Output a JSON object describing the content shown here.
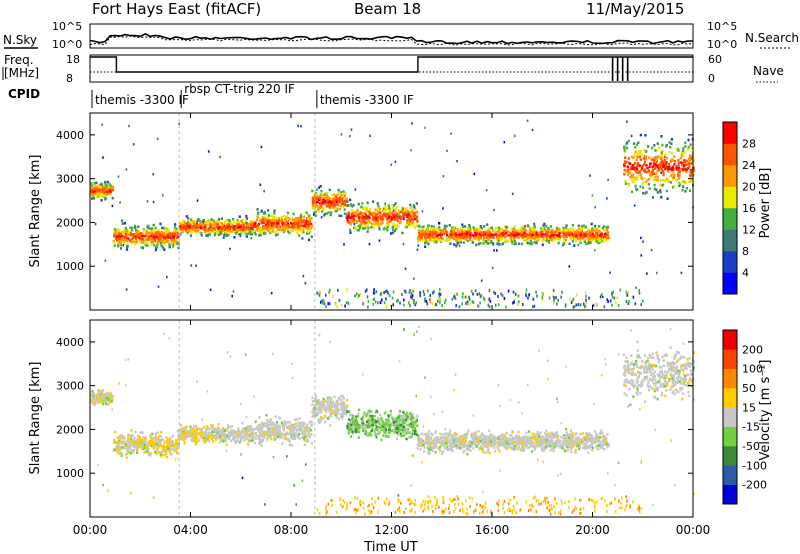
{
  "header": {
    "station": "Fort Hays East (fitACF)",
    "beam": "Beam 18",
    "date": "11/May/2015"
  },
  "top_strips": {
    "nsky_label": "N.Sky",
    "nsearch_label": "N.Search",
    "noise_ticks_left": [
      "10^5",
      "10^0"
    ],
    "noise_ticks_right": [
      "10^5",
      "10^0"
    ],
    "freq_label": "Freq.",
    "freq_unit": "[MHz]",
    "freq_ticks": [
      "18",
      "8"
    ],
    "nave_label": "Nave",
    "nave_ticks": [
      "60",
      "0"
    ],
    "cpid_label": "CPID",
    "cpid_segments": [
      {
        "label": "themis -3300 IF",
        "start_h": 0.0,
        "end_h": 3.55
      },
      {
        "label": "rbsp CT-trig 220 IF",
        "start_h": 3.55,
        "end_h": 8.95
      },
      {
        "label": "themis -3300 IF",
        "start_h": 8.95,
        "end_h": 24.0
      }
    ]
  },
  "chart_data": [
    {
      "type": "heatmap",
      "title": "Power",
      "ylabel": "Slant Range [km]",
      "ylim": [
        0,
        4500
      ],
      "y_ticks": [
        "4000",
        "3000",
        "2000",
        "1000"
      ],
      "xlim": [
        0,
        24
      ],
      "colorbar_label": "Power [dB]",
      "colorbar_ticks": [
        "28",
        "24",
        "20",
        "16",
        "12",
        "8",
        "4"
      ],
      "colorbar_colors": [
        "#0000ff",
        "#1a3fc6",
        "#3c7a78",
        "#40b040",
        "#e8e800",
        "#ff9900",
        "#ff5500",
        "#ff0000"
      ],
      "scatter_bands": [
        {
          "t0": 0.0,
          "t1": 0.9,
          "r0": 2500,
          "r1": 3000
        },
        {
          "t0": 0.9,
          "t1": 3.5,
          "r0": 1350,
          "r1": 2050
        },
        {
          "t0": 3.5,
          "t1": 6.5,
          "r0": 1650,
          "r1": 2200
        },
        {
          "t0": 6.5,
          "t1": 8.8,
          "r0": 1600,
          "r1": 2400
        },
        {
          "t0": 8.8,
          "t1": 10.2,
          "r0": 2100,
          "r1": 2900
        },
        {
          "t0": 10.2,
          "t1": 13.0,
          "r0": 1700,
          "r1": 2600
        },
        {
          "t0": 13.0,
          "t1": 20.6,
          "r0": 1450,
          "r1": 2050
        },
        {
          "t0": 21.2,
          "t1": 24.0,
          "r0": 2500,
          "r1": 4100
        }
      ]
    },
    {
      "type": "heatmap",
      "title": "Velocity",
      "ylabel": "Slant Range [km]",
      "ylim": [
        0,
        4500
      ],
      "y_ticks": [
        "4000",
        "3000",
        "2000",
        "1000"
      ],
      "xlim": [
        0,
        24
      ],
      "xlabel": "Time UT",
      "x_ticks": [
        "00:00",
        "04:00",
        "08:00",
        "12:00",
        "16:00",
        "20:00",
        "00:00"
      ],
      "colorbar_label": "Velocity [m s⁻¹]",
      "colorbar_ticks": [
        "200",
        "100",
        "50",
        "15",
        "-15",
        "-50",
        "-100",
        "-200"
      ],
      "colorbar_colors": [
        "#0000dd",
        "#2a5aa8",
        "#3a8a3a",
        "#70d040",
        "#c8c8c8",
        "#ffcc00",
        "#ff8800",
        "#ff4400",
        "#ee0000"
      ],
      "scatter_bands": [
        {
          "t0": 0.0,
          "t1": 0.9,
          "r0": 2500,
          "r1": 3000
        },
        {
          "t0": 0.9,
          "t1": 3.5,
          "r0": 1350,
          "r1": 2050
        },
        {
          "t0": 3.5,
          "t1": 6.5,
          "r0": 1650,
          "r1": 2200
        },
        {
          "t0": 6.5,
          "t1": 8.8,
          "r0": 1600,
          "r1": 2400
        },
        {
          "t0": 8.8,
          "t1": 10.2,
          "r0": 2100,
          "r1": 2900
        },
        {
          "t0": 10.2,
          "t1": 13.0,
          "r0": 1700,
          "r1": 2600
        },
        {
          "t0": 13.0,
          "t1": 20.6,
          "r0": 1450,
          "r1": 2050
        },
        {
          "t0": 21.2,
          "t1": 24.0,
          "r0": 2500,
          "r1": 4100
        }
      ]
    }
  ]
}
